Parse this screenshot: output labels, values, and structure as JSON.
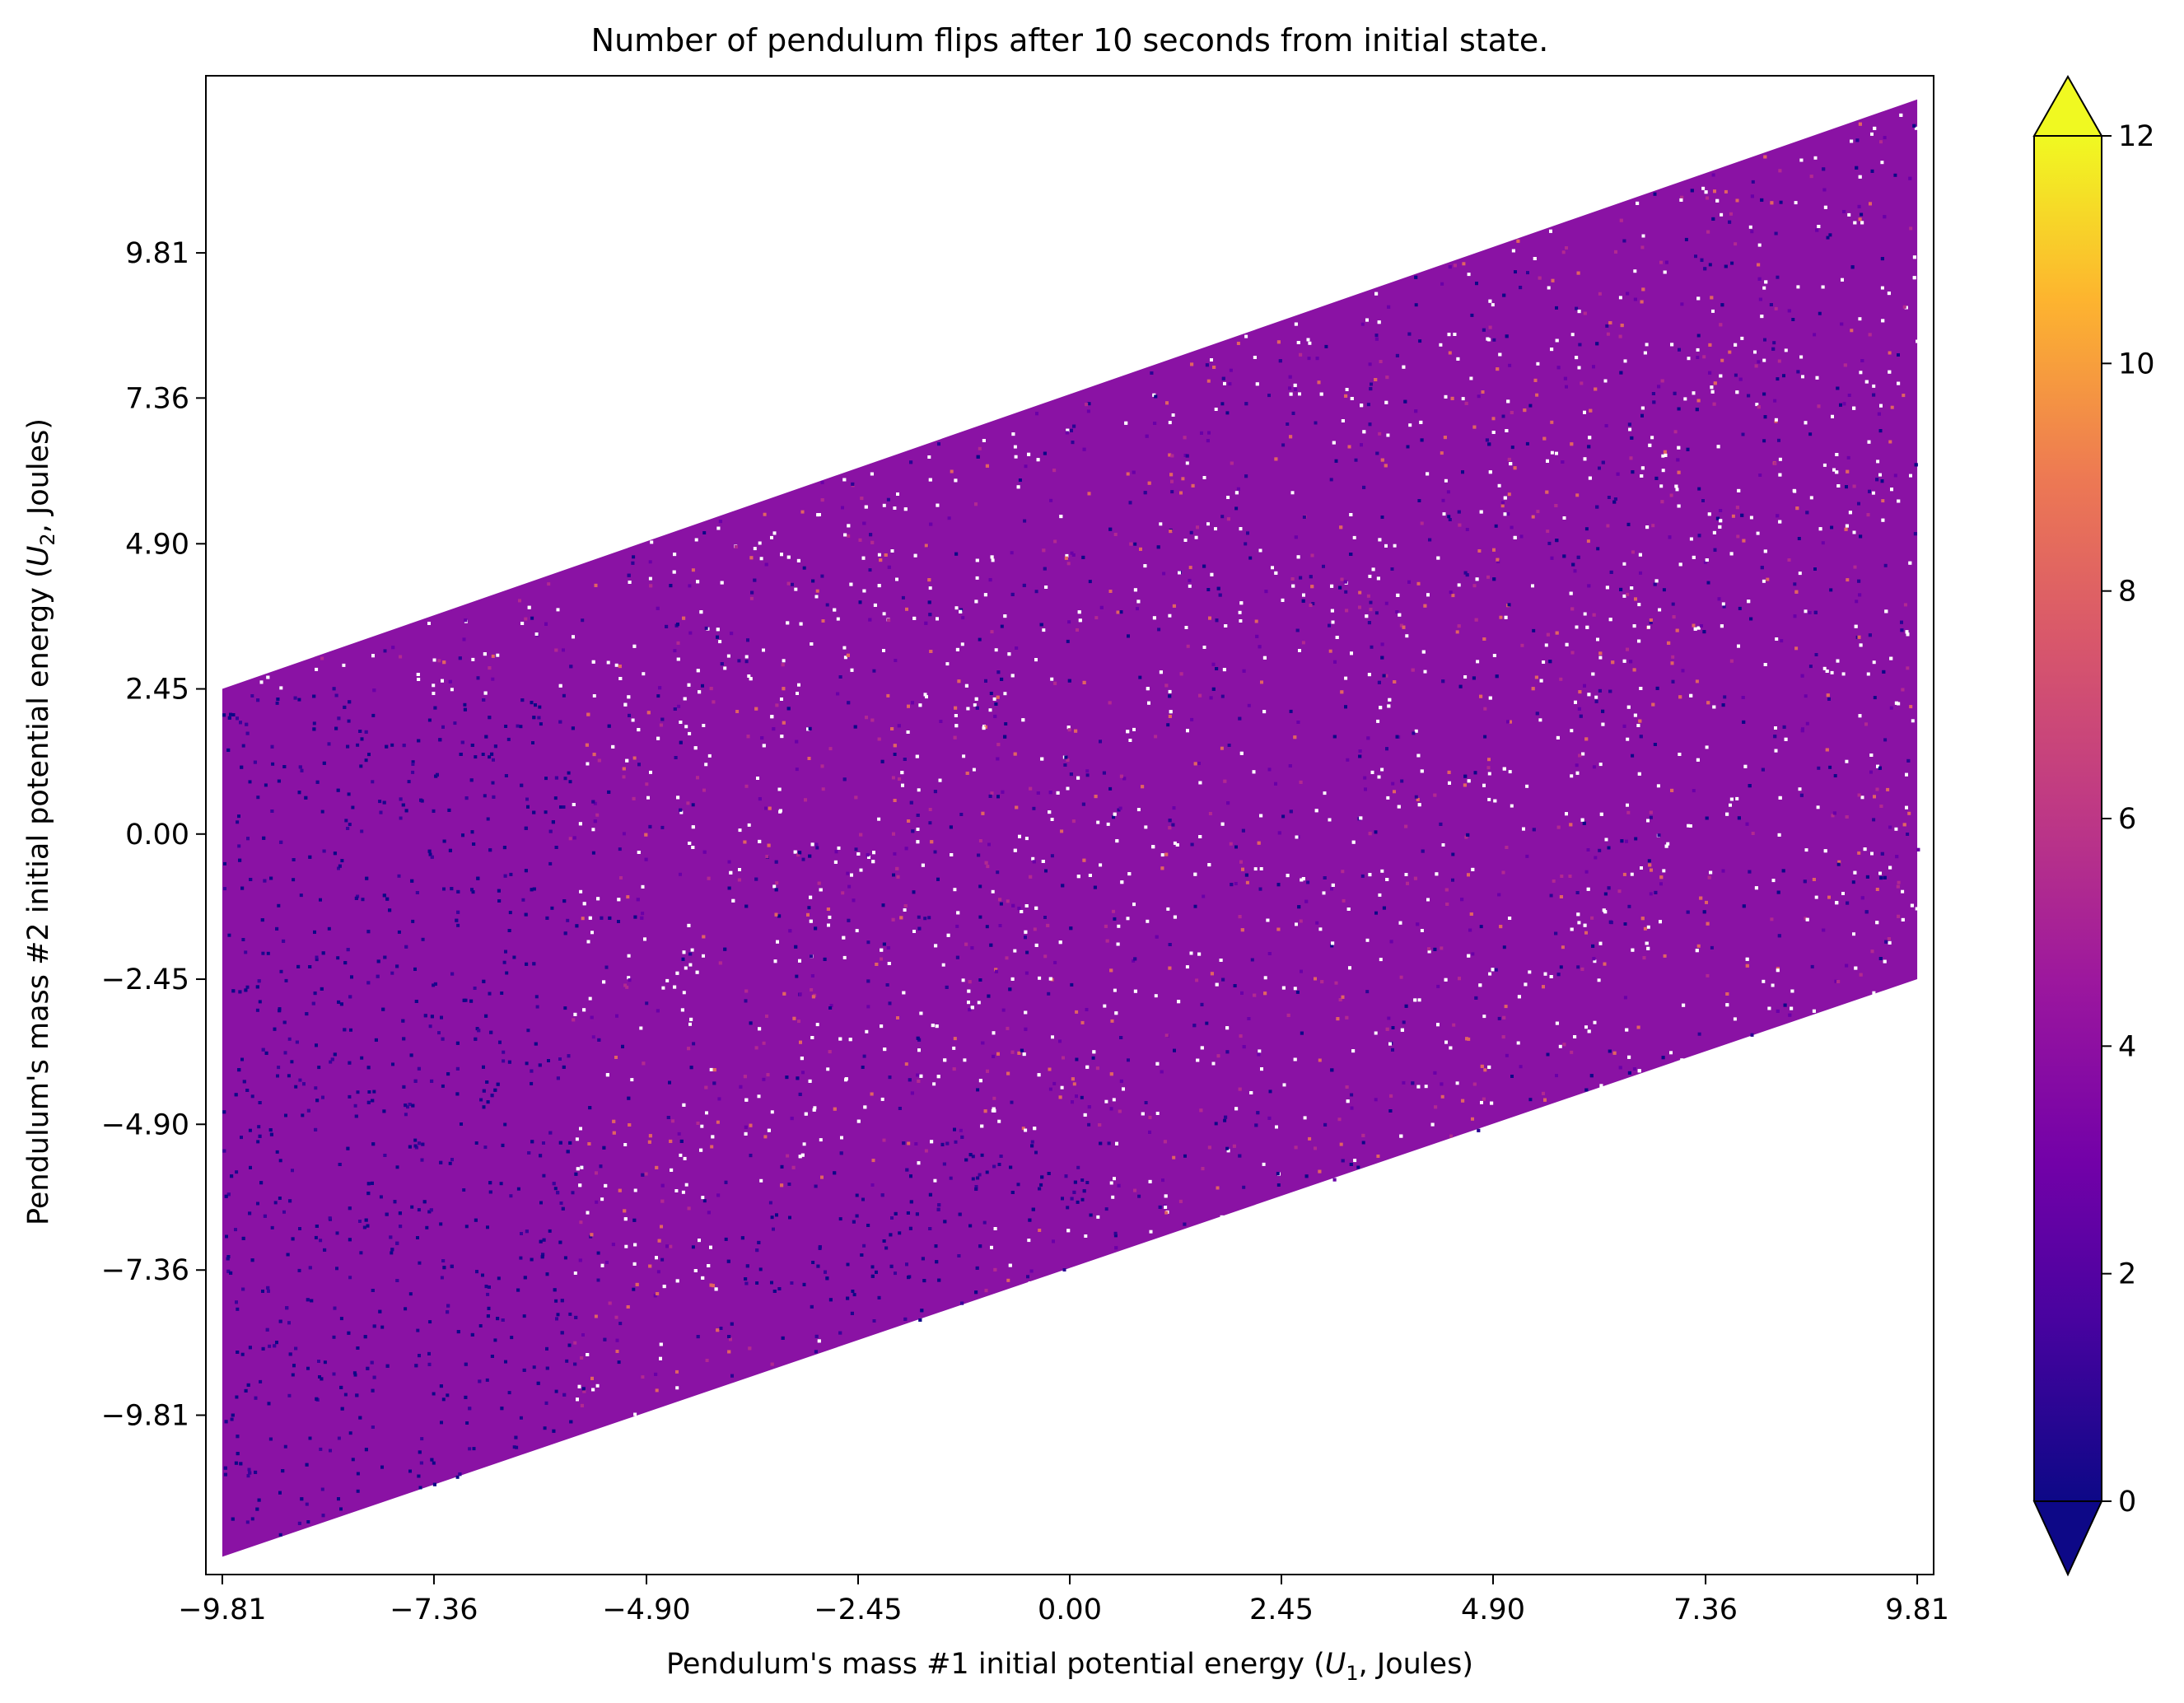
{
  "chart_data": {
    "type": "scatter",
    "title": "Number of pendulum flips after 10 seconds from initial state.",
    "xlabel": {
      "pre": "Pendulum's mass #1 initial potential energy (",
      "var": "U",
      "sub": "1",
      "post": ", Joules)"
    },
    "ylabel": {
      "pre": "Pendulum's mass #2 initial potential energy (",
      "var": "U",
      "sub": "2",
      "post": ", Joules)"
    },
    "xlim": [
      -10.0,
      10.0
    ],
    "ylim": [
      -12.5,
      12.8
    ],
    "x_ticks": [
      -9.81,
      -7.36,
      -4.9,
      -2.45,
      0.0,
      2.45,
      4.9,
      7.36,
      9.81
    ],
    "x_tick_labels": [
      "−9.81",
      "−7.36",
      "−4.90",
      "−2.45",
      "0.00",
      "2.45",
      "4.90",
      "7.36",
      "9.81"
    ],
    "y_ticks": [
      9.81,
      7.36,
      4.9,
      2.45,
      0.0,
      -2.45,
      -4.9,
      -7.36,
      -9.81
    ],
    "y_tick_labels": [
      "9.81",
      "7.36",
      "4.90",
      "2.45",
      "0.00",
      "−2.45",
      "−4.90",
      "−7.36",
      "−9.81"
    ],
    "region": {
      "left_edge_x": -9.81,
      "right_edge_x": 9.81,
      "left_edge_y": [
        -12.2,
        2.45
      ],
      "right_edge_y": [
        -2.45,
        12.4
      ]
    },
    "dense_low_flip_regions": [
      {
        "x": [
          -9.81,
          -5.8
        ],
        "y": [
          -12.2,
          2.4
        ]
      },
      {
        "x": [
          -4.0,
          -1.0
        ],
        "y": [
          -8.5,
          -6.0
        ]
      },
      {
        "x": [
          -1.5,
          0.3
        ],
        "y": [
          -6.5,
          -5.0
        ]
      }
    ],
    "colormap": "plasma",
    "colorbar": {
      "min": 0,
      "max": 12,
      "ticks": [
        0,
        2,
        4,
        6,
        8,
        10,
        12
      ],
      "tick_labels": [
        "0",
        "2",
        "4",
        "6",
        "8",
        "10",
        "12"
      ],
      "extend": "both"
    },
    "colors": {
      "low": "#0d0887",
      "mid": "#9c179e",
      "high": "#f0f921"
    }
  }
}
